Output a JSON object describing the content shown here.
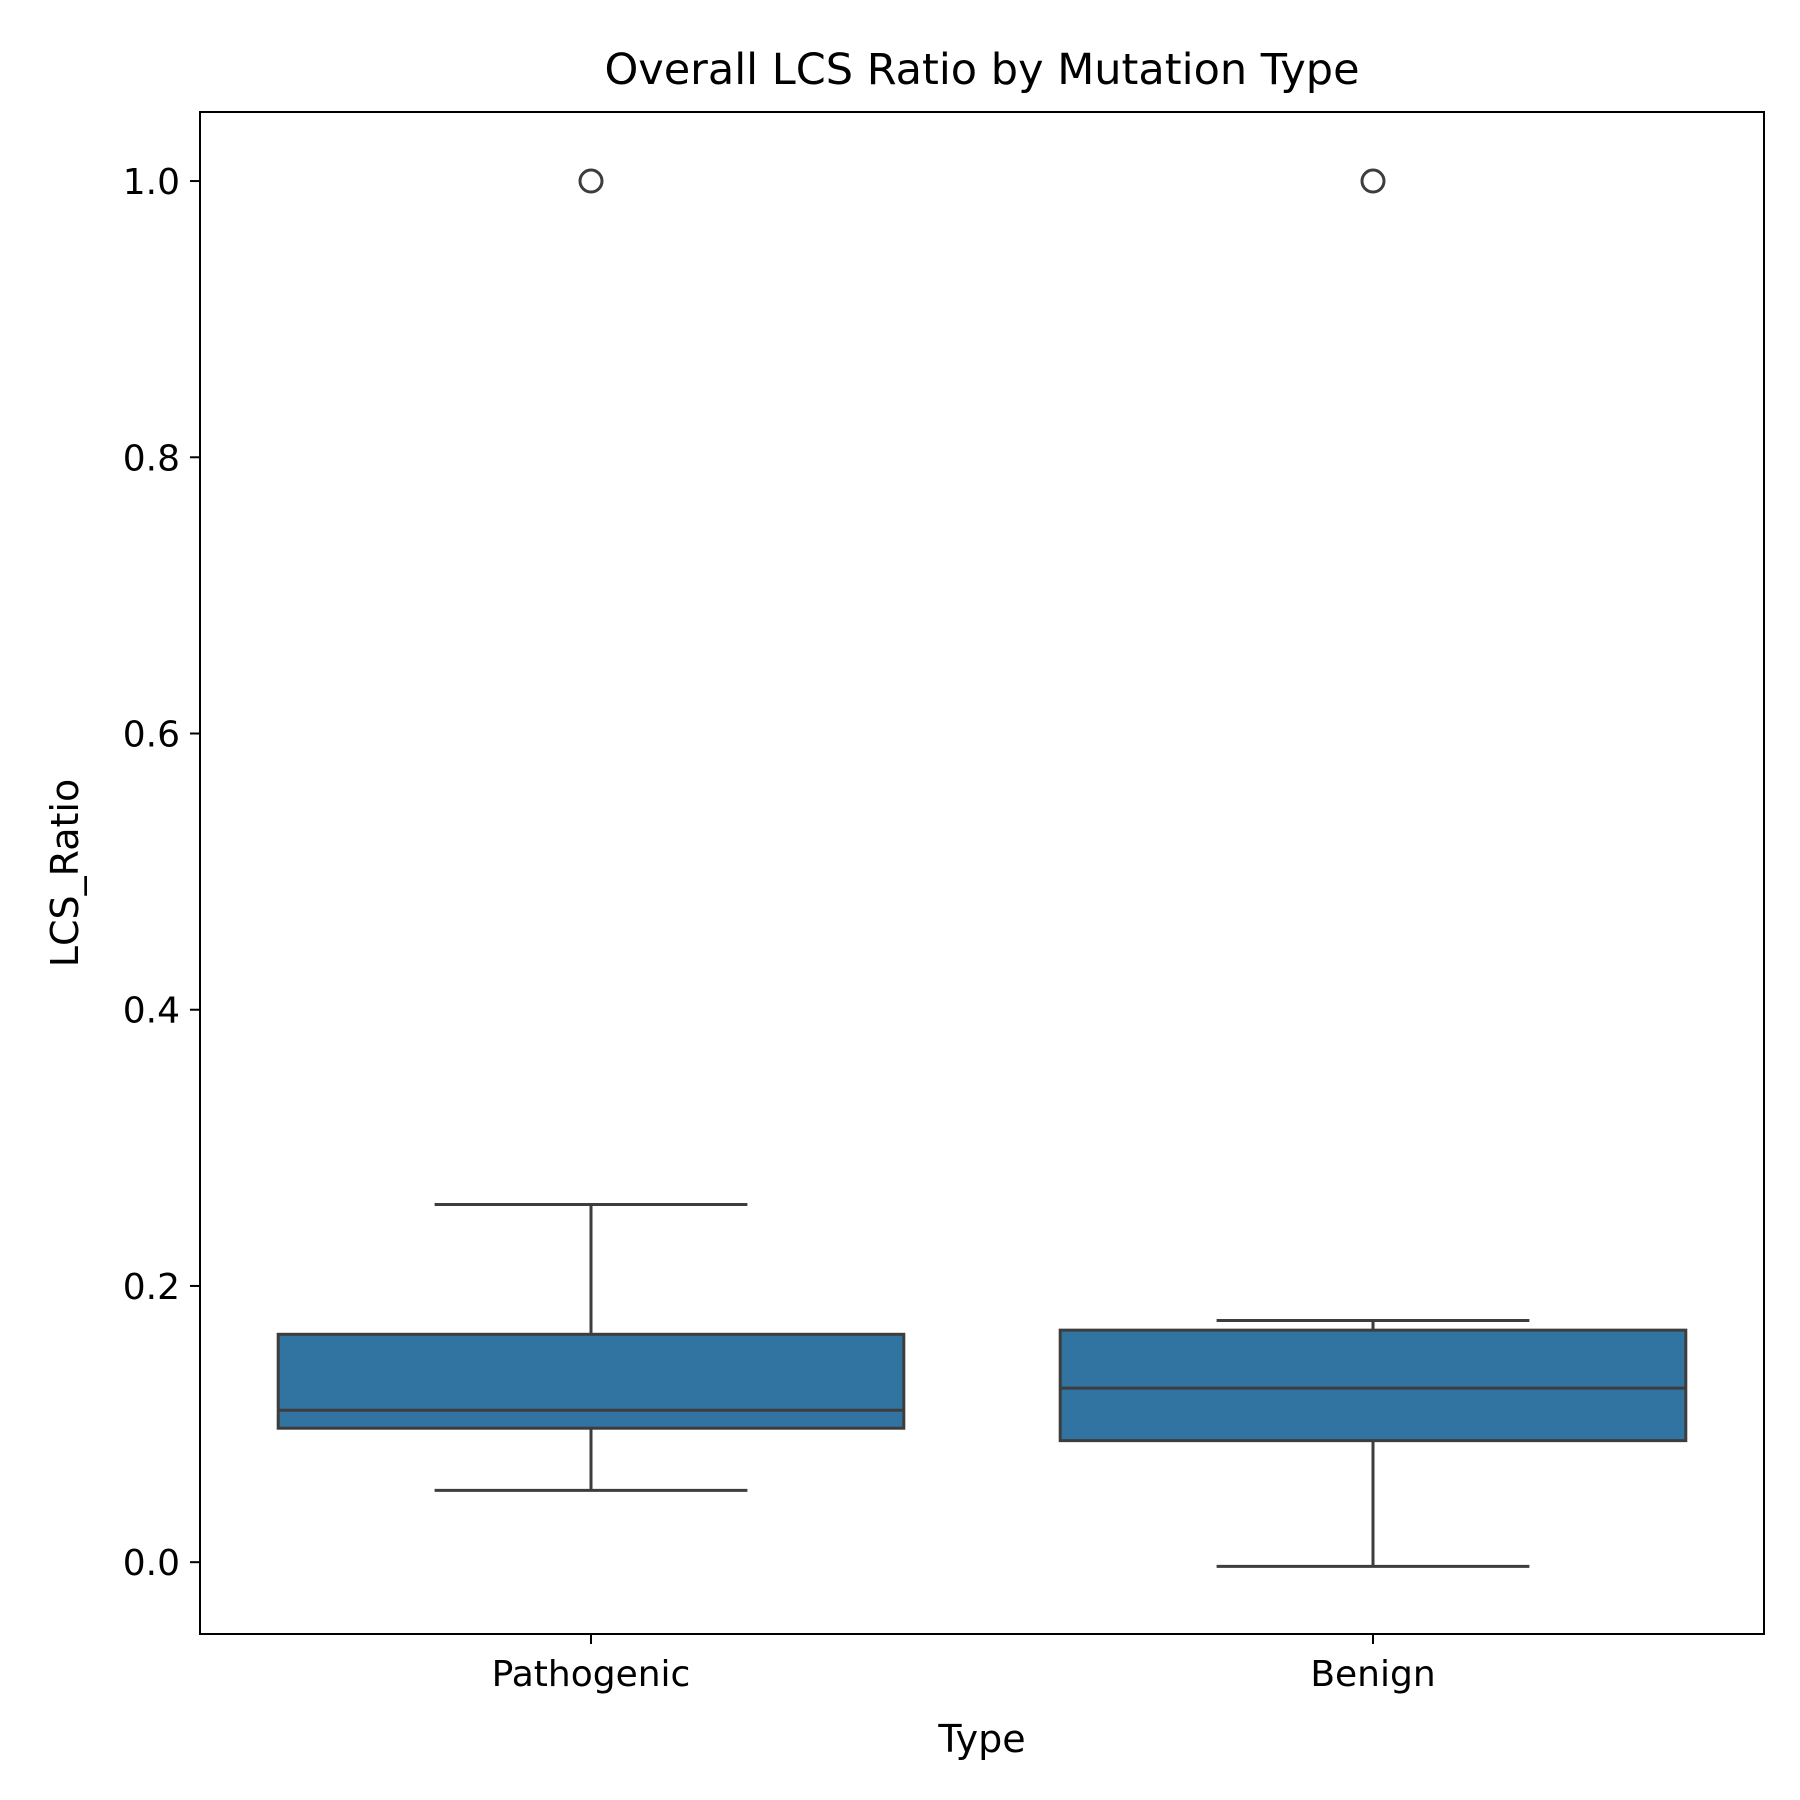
{
  "chart_data": {
    "type": "box",
    "title": "Overall LCS Ratio by Mutation Type",
    "xlabel": "Type",
    "ylabel": "LCS_Ratio",
    "ylim": [
      -0.052,
      1.05
    ],
    "yticks": [
      0.0,
      0.2,
      0.4,
      0.6,
      0.8,
      1.0
    ],
    "ytick_labels": [
      "0.0",
      "0.2",
      "0.4",
      "0.6",
      "0.8",
      "1.0"
    ],
    "categories": [
      "Pathogenic",
      "Benign"
    ],
    "boxes": [
      {
        "category": "Pathogenic",
        "whisker_low": 0.052,
        "q1": 0.097,
        "median": 0.11,
        "q3": 0.165,
        "whisker_high": 0.259,
        "outliers": [
          1.0
        ]
      },
      {
        "category": "Benign",
        "whisker_low": -0.003,
        "q1": 0.088,
        "median": 0.126,
        "q3": 0.168,
        "whisker_high": 0.175,
        "outliers": [
          1.0
        ]
      }
    ],
    "box_color": "#3274a1",
    "line_color": "#3d3d3d",
    "grid": false,
    "legend": "none"
  }
}
